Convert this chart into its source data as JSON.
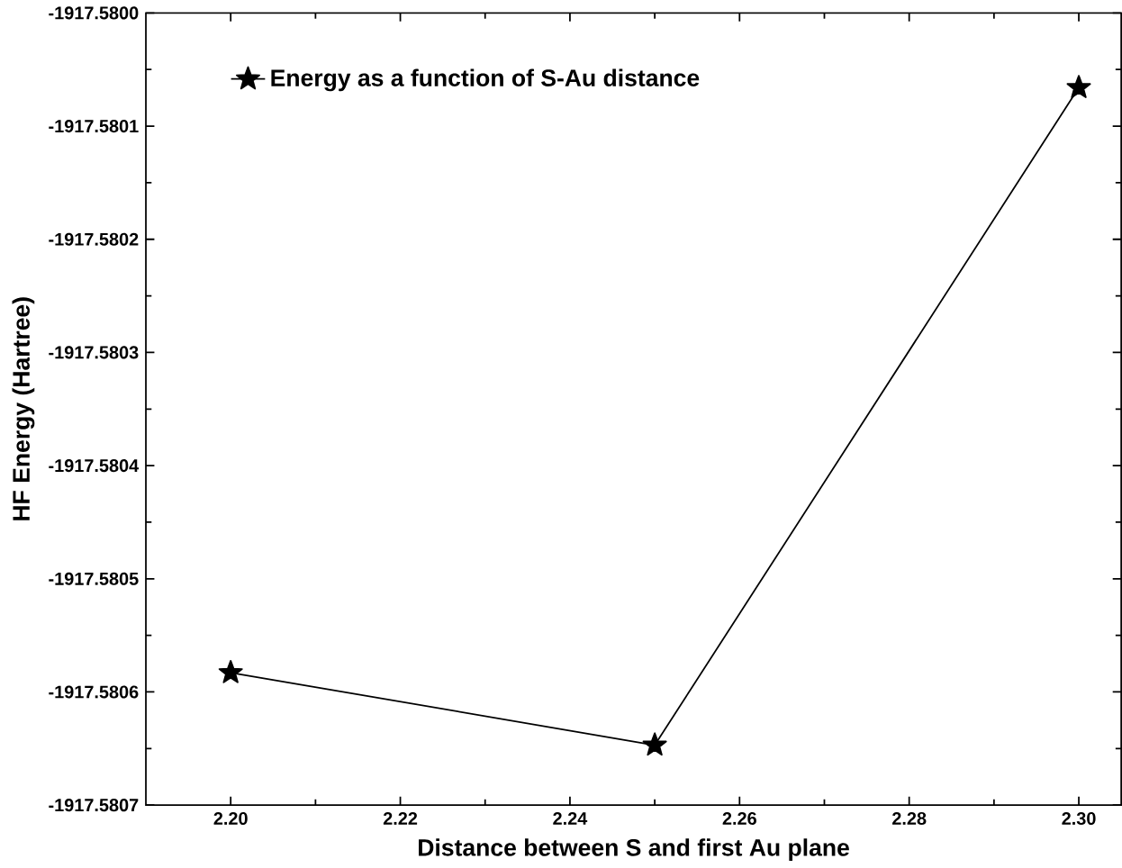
{
  "chart_data": {
    "type": "line",
    "xlabel": "Distance between S and first Au plane",
    "ylabel": "HF Energy (Hartree)",
    "x": [
      2.2,
      2.25,
      2.3
    ],
    "series": [
      {
        "name": "Energy as a function of S-Au distance",
        "color": "#000000",
        "values": [
          -1917.580583,
          -1917.580647,
          -1917.580066
        ]
      }
    ],
    "xlim": [
      2.19,
      2.305
    ],
    "xticks": [
      {
        "value": 2.2,
        "label": "2.20"
      },
      2.22,
      2.24,
      2.26,
      2.28,
      {
        "value": 2.3,
        "label": "2.30"
      }
    ],
    "ylim": [
      -1917.5807,
      -1917.58
    ],
    "yticks": [
      -1917.5807,
      -1917.5806,
      -1917.5805,
      -1917.5804,
      -1917.5803,
      -1917.5802,
      -1917.5801,
      {
        "value": -1917.58,
        "label": "-1917.5800"
      }
    ],
    "legend": "top left",
    "marker": "star",
    "line_style": "solid",
    "grid": false
  }
}
